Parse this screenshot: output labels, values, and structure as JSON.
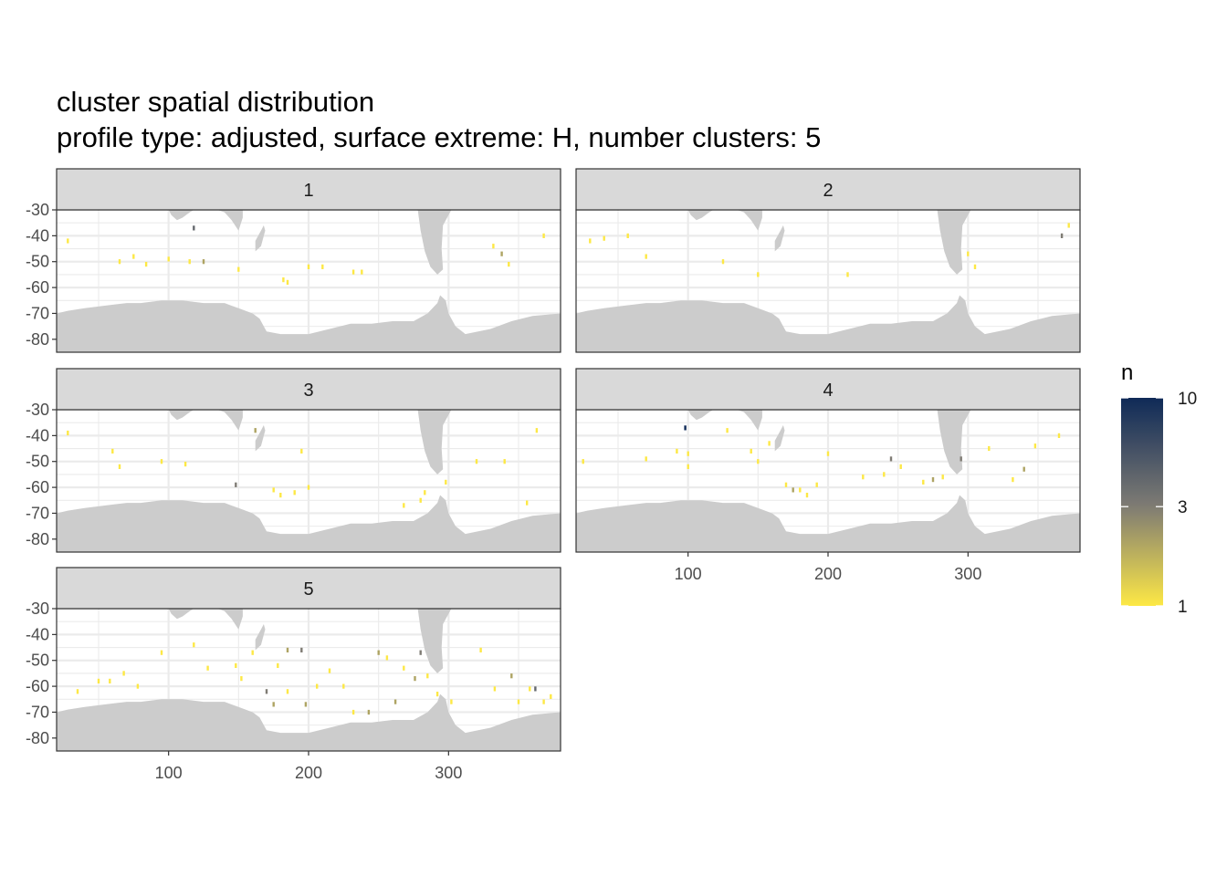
{
  "title_line1": "cluster spatial distribution",
  "title_line2": "profile type: adjusted, surface extreme: H, number clusters: 5",
  "colors": {
    "land": "#cccccc",
    "panel_bg": "#ffffff",
    "grid": "#ebebeb",
    "strip_bg": "#d9d9d9",
    "low": "#fde845",
    "mid": "#7f7c74",
    "high": "#0f2a57"
  },
  "legend": {
    "title": "n",
    "labels": [
      "10",
      "3",
      "1"
    ],
    "values": [
      10,
      3,
      1
    ],
    "scale": "log"
  },
  "chart_data": {
    "type": "heatmap",
    "facet_by": "cluster",
    "x_ticks": [
      100,
      200,
      300
    ],
    "y_ticks": [
      -30,
      -40,
      -50,
      -60,
      -70,
      -80
    ],
    "x_tick_labels": [
      "100",
      "200",
      "300"
    ],
    "y_tick_labels": [
      "-30",
      "-40",
      "-50",
      "-60",
      "-70",
      "-80"
    ],
    "xlim": [
      20,
      380
    ],
    "ylim": [
      -85,
      -30
    ],
    "panels": [
      {
        "label": "1",
        "cells": [
          [
            28,
            -42,
            1
          ],
          [
            65,
            -50,
            1
          ],
          [
            75,
            -48,
            1
          ],
          [
            84,
            -51,
            1
          ],
          [
            100,
            -49,
            1
          ],
          [
            115,
            -50,
            1
          ],
          [
            125,
            -50,
            2
          ],
          [
            150,
            -53,
            1
          ],
          [
            182,
            -57,
            1
          ],
          [
            185,
            -58,
            1
          ],
          [
            200,
            -52,
            1
          ],
          [
            210,
            -52,
            1
          ],
          [
            232,
            -54,
            1
          ],
          [
            238,
            -54,
            1
          ],
          [
            332,
            -44,
            1
          ],
          [
            338,
            -47,
            2
          ],
          [
            343,
            -51,
            1
          ],
          [
            368,
            -40,
            1
          ],
          [
            118,
            -37,
            4
          ]
        ]
      },
      {
        "label": "2",
        "cells": [
          [
            30,
            -42,
            1
          ],
          [
            40,
            -41,
            1
          ],
          [
            57,
            -40,
            1
          ],
          [
            70,
            -48,
            1
          ],
          [
            125,
            -50,
            1
          ],
          [
            150,
            -55,
            1
          ],
          [
            214,
            -55,
            1
          ],
          [
            300,
            -47,
            1
          ],
          [
            305,
            -52,
            1
          ],
          [
            367,
            -40,
            3
          ],
          [
            372,
            -36,
            1
          ]
        ]
      },
      {
        "label": "3",
        "cells": [
          [
            28,
            -39,
            1
          ],
          [
            60,
            -46,
            1
          ],
          [
            65,
            -52,
            1
          ],
          [
            95,
            -50,
            1
          ],
          [
            112,
            -51,
            1
          ],
          [
            148,
            -59,
            3
          ],
          [
            162,
            -38,
            2
          ],
          [
            195,
            -46,
            1
          ],
          [
            175,
            -61,
            1
          ],
          [
            180,
            -63,
            1
          ],
          [
            190,
            -62,
            1
          ],
          [
            200,
            -60,
            1
          ],
          [
            268,
            -67,
            1
          ],
          [
            280,
            -65,
            1
          ],
          [
            283,
            -62,
            1
          ],
          [
            298,
            -58,
            1
          ],
          [
            320,
            -50,
            1
          ],
          [
            340,
            -50,
            1
          ],
          [
            356,
            -66,
            1
          ],
          [
            363,
            -38,
            1
          ]
        ]
      },
      {
        "label": "4",
        "cells": [
          [
            25,
            -50,
            1
          ],
          [
            70,
            -49,
            1
          ],
          [
            92,
            -46,
            1
          ],
          [
            98,
            -37,
            10
          ],
          [
            100,
            -47,
            1
          ],
          [
            100,
            -52,
            1
          ],
          [
            128,
            -38,
            1
          ],
          [
            145,
            -46,
            1
          ],
          [
            150,
            -50,
            1
          ],
          [
            158,
            -43,
            1
          ],
          [
            170,
            -59,
            1
          ],
          [
            175,
            -61,
            2
          ],
          [
            180,
            -61,
            1
          ],
          [
            185,
            -63,
            1
          ],
          [
            192,
            -59,
            1
          ],
          [
            200,
            -47,
            1
          ],
          [
            225,
            -56,
            1
          ],
          [
            240,
            -55,
            1
          ],
          [
            245,
            -49,
            3
          ],
          [
            252,
            -52,
            1
          ],
          [
            268,
            -58,
            1
          ],
          [
            275,
            -57,
            2
          ],
          [
            282,
            -56,
            1
          ],
          [
            295,
            -49,
            3
          ],
          [
            315,
            -45,
            1
          ],
          [
            332,
            -57,
            1
          ],
          [
            340,
            -53,
            2
          ],
          [
            348,
            -44,
            1
          ],
          [
            365,
            -40,
            1
          ]
        ]
      },
      {
        "label": "5",
        "cells": [
          [
            35,
            -62,
            1
          ],
          [
            50,
            -58,
            1
          ],
          [
            58,
            -58,
            1
          ],
          [
            68,
            -55,
            1
          ],
          [
            78,
            -60,
            1
          ],
          [
            95,
            -47,
            1
          ],
          [
            118,
            -44,
            1
          ],
          [
            128,
            -53,
            1
          ],
          [
            148,
            -52,
            1
          ],
          [
            152,
            -57,
            1
          ],
          [
            160,
            -47,
            1
          ],
          [
            170,
            -62,
            3
          ],
          [
            175,
            -67,
            2
          ],
          [
            178,
            -52,
            1
          ],
          [
            185,
            -46,
            2
          ],
          [
            185,
            -62,
            1
          ],
          [
            195,
            -46,
            3
          ],
          [
            198,
            -67,
            2
          ],
          [
            206,
            -60,
            1
          ],
          [
            215,
            -54,
            1
          ],
          [
            225,
            -60,
            1
          ],
          [
            232,
            -70,
            1
          ],
          [
            243,
            -70,
            2
          ],
          [
            250,
            -47,
            2
          ],
          [
            256,
            -49,
            1
          ],
          [
            262,
            -66,
            2
          ],
          [
            268,
            -53,
            1
          ],
          [
            276,
            -57,
            2
          ],
          [
            280,
            -47,
            3
          ],
          [
            285,
            -56,
            1
          ],
          [
            292,
            -63,
            1
          ],
          [
            302,
            -66,
            1
          ],
          [
            323,
            -46,
            1
          ],
          [
            333,
            -61,
            1
          ],
          [
            345,
            -56,
            2
          ],
          [
            350,
            -66,
            1
          ],
          [
            358,
            -61,
            1
          ],
          [
            362,
            -61,
            4
          ],
          [
            368,
            -66,
            1
          ],
          [
            373,
            -64,
            1
          ]
        ]
      }
    ]
  }
}
